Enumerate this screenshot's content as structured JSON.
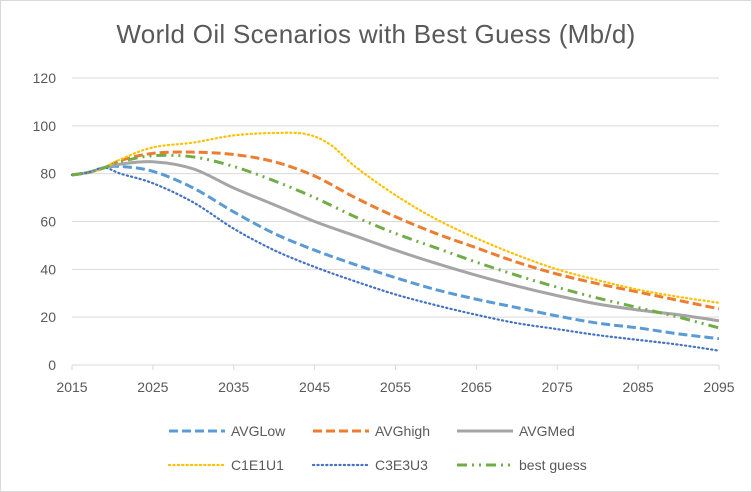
{
  "chart_data": {
    "type": "line",
    "title": "World Oil Scenarios with Best Guess (Mb/d)",
    "xlabel": "",
    "ylabel": "",
    "xlim": [
      2015,
      2095
    ],
    "ylim": [
      0,
      120
    ],
    "x_ticks": [
      2015,
      2025,
      2035,
      2045,
      2055,
      2065,
      2075,
      2085,
      2095
    ],
    "y_ticks": [
      0,
      20,
      40,
      60,
      80,
      100,
      120
    ],
    "grid": true,
    "legend_position": "bottom",
    "series": [
      {
        "name": "AVGLow",
        "color": "#5b9bd5",
        "dash": "dashed",
        "x": [
          2015,
          2017,
          2019,
          2021,
          2025,
          2030,
          2035,
          2040,
          2045,
          2050,
          2055,
          2060,
          2065,
          2070,
          2075,
          2080,
          2085,
          2090,
          2095
        ],
        "y": [
          79.5,
          80.5,
          82.5,
          83,
          81,
          74,
          64,
          55,
          48,
          42,
          36.5,
          31.5,
          27.5,
          24,
          20.5,
          17.5,
          15.5,
          13,
          11
        ]
      },
      {
        "name": "AVGhigh",
        "color": "#ed7d31",
        "dash": "dashed",
        "x": [
          2015,
          2017,
          2019,
          2021,
          2025,
          2030,
          2035,
          2040,
          2045,
          2050,
          2055,
          2060,
          2065,
          2070,
          2075,
          2080,
          2085,
          2090,
          2095
        ],
        "y": [
          79.5,
          80.5,
          82.5,
          85.5,
          88.5,
          89,
          88,
          85,
          79,
          70,
          62,
          55,
          49,
          43,
          38,
          34,
          30.5,
          27,
          23.5
        ]
      },
      {
        "name": "AVGMed",
        "color": "#a5a5a5",
        "dash": "solid",
        "x": [
          2015,
          2017,
          2019,
          2021,
          2025,
          2030,
          2035,
          2040,
          2045,
          2050,
          2055,
          2060,
          2065,
          2070,
          2075,
          2080,
          2085,
          2090,
          2095
        ],
        "y": [
          79.5,
          80.5,
          82.5,
          84,
          85,
          82,
          74,
          67,
          60,
          54,
          48,
          42.5,
          37.5,
          33,
          29,
          25.5,
          23,
          21,
          18.5
        ]
      },
      {
        "name": "C1E1U1",
        "color": "#ffc000",
        "dash": "dotted",
        "x": [
          2015,
          2017,
          2019,
          2021,
          2025,
          2030,
          2035,
          2040,
          2044,
          2047,
          2050,
          2055,
          2060,
          2065,
          2070,
          2075,
          2080,
          2085,
          2090,
          2095
        ],
        "y": [
          79.5,
          80.5,
          82.5,
          86,
          91,
          93,
          96,
          97,
          96.5,
          92,
          83,
          71,
          61,
          53,
          46,
          40,
          35.5,
          31.5,
          28.5,
          26
        ]
      },
      {
        "name": "C3E3U3",
        "color": "#4472c4",
        "dash": "dotted",
        "x": [
          2015,
          2017,
          2019,
          2021,
          2025,
          2030,
          2035,
          2040,
          2045,
          2050,
          2055,
          2060,
          2065,
          2070,
          2075,
          2080,
          2085,
          2090,
          2095
        ],
        "y": [
          79.5,
          80.5,
          82.5,
          80,
          76,
          68,
          57,
          48,
          41,
          35,
          29.5,
          25,
          21,
          17.5,
          15,
          12.5,
          10.5,
          8.5,
          6
        ]
      },
      {
        "name": "best guess",
        "color": "#70ad47",
        "dash": "dashdotdot",
        "x": [
          2015,
          2017,
          2019,
          2021,
          2025,
          2030,
          2035,
          2040,
          2045,
          2050,
          2055,
          2060,
          2065,
          2070,
          2075,
          2080,
          2085,
          2090,
          2095
        ],
        "y": [
          79.5,
          80.5,
          82.5,
          85,
          87.5,
          87,
          83,
          77,
          70,
          62,
          55,
          49,
          43,
          37.5,
          32.5,
          28,
          24,
          20,
          15.5
        ]
      }
    ]
  }
}
